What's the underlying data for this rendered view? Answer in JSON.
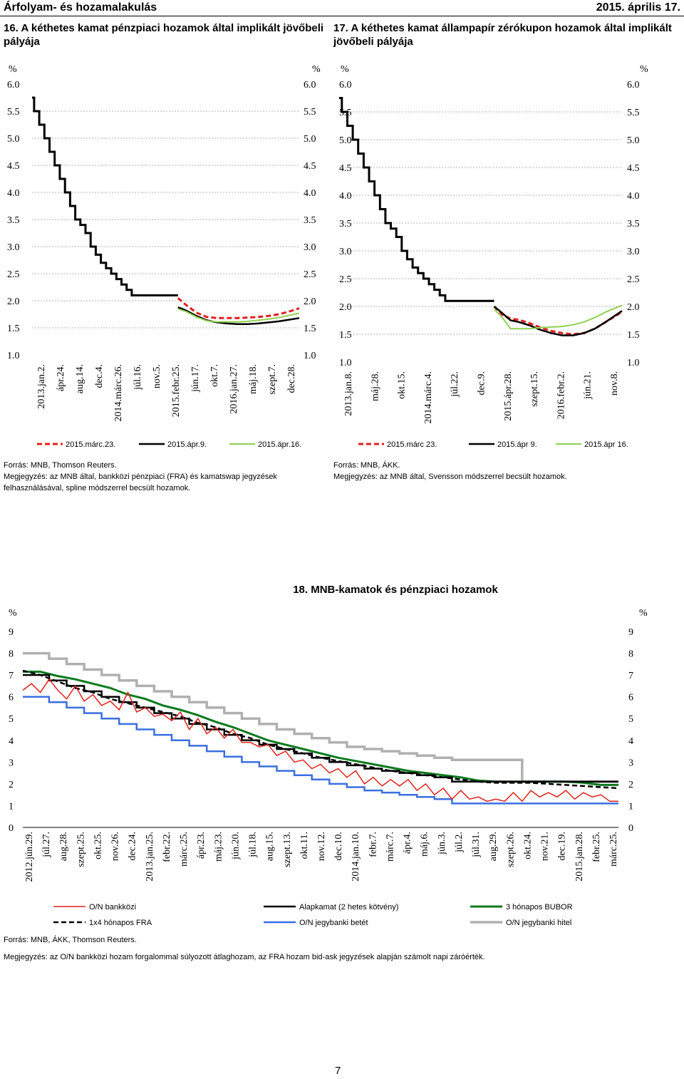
{
  "header": {
    "section": "Árfolyam- és hozamalakulás",
    "date": "2015. április 17."
  },
  "page_number": "7",
  "colors": {
    "red": "#e0211b",
    "black": "#000000",
    "green_light": "#92d050",
    "green_dark": "#0b7a1e",
    "blue": "#3a6fe0",
    "gray": "#b0b0b0"
  },
  "charts": {
    "c16": {
      "title": "16. A kéthetes kamat pénzpiaci hozamok által implikált jövőbeli pályája",
      "source": "Forrás: MNB, Thomson Reuters.",
      "note": "Megjegyzés: az MNB által, bankközi pénzpiaci (FRA) és kamatswap jegyzések felhasználásával, spline módszerrel becsült hozamok."
    },
    "c17": {
      "title": "17. A kéthetes kamat állampapír zérókupon hozamok által implikált jövőbeli pályája",
      "source": "Forrás: MNB, ÁKK.",
      "note": "Megjegyzés: az MNB által, Svensson módszerrel becsült hozamok."
    },
    "c18": {
      "title": "18. MNB-kamatok és pénzpiaci hozamok",
      "source": "Forrás: MNB, ÁKK, Thomson Reuters.",
      "note": "Megjegyzés: az O/N bankközi hozam forgalommal súlyozott átlaghozam, az FRA hozam bid-ask jegyzések alapján számolt napi záróérték."
    }
  },
  "chart_data": [
    {
      "id": "c16",
      "type": "line",
      "ylabel_left": "%",
      "ylabel_right": "%",
      "ylim": [
        1.0,
        6.0
      ],
      "yticks": [
        "1.0",
        "1.5",
        "2.0",
        "2.5",
        "3.0",
        "3.5",
        "4.0",
        "4.5",
        "5.0",
        "5.5",
        "6.0"
      ],
      "xticks": [
        "2013.jan.2.",
        "ápr.24.",
        "aug.14.",
        "dec.4.",
        "2014.márc.26.",
        "júl.16.",
        "nov.5.",
        "2015.febr.25.",
        "jún.17.",
        "okt.7.",
        "2016.jan.27.",
        "máj.18.",
        "szept.7.",
        "dec.28."
      ],
      "xrange": [
        0,
        13
      ],
      "history": {
        "x": [
          0,
          0.1,
          0.35,
          0.6,
          0.85,
          1.1,
          1.35,
          1.6,
          1.85,
          2.1,
          2.35,
          2.6,
          2.85,
          3.1,
          3.35,
          3.6,
          3.85,
          4.1,
          4.35,
          4.6,
          4.85,
          5.1,
          5.5,
          6.5,
          7.0,
          7.1
        ],
        "y": [
          5.75,
          5.5,
          5.25,
          5.0,
          4.75,
          4.5,
          4.25,
          4.0,
          3.75,
          3.5,
          3.4,
          3.25,
          3.0,
          2.85,
          2.7,
          2.6,
          2.5,
          2.4,
          2.3,
          2.2,
          2.1,
          2.1,
          2.1,
          2.1,
          2.1,
          2.1
        ]
      },
      "series": [
        {
          "name": "2015.márc.23.",
          "style": "red-dashed",
          "x": [
            7.1,
            7.5,
            8.0,
            8.5,
            9.0,
            9.5,
            10.0,
            10.5,
            11.0,
            11.5,
            12.0,
            12.5,
            13.0
          ],
          "y": [
            2.05,
            1.92,
            1.78,
            1.7,
            1.68,
            1.68,
            1.68,
            1.69,
            1.7,
            1.72,
            1.75,
            1.8,
            1.86
          ]
        },
        {
          "name": "2015.ápr.9.",
          "style": "black",
          "x": [
            7.1,
            7.5,
            8.0,
            8.5,
            9.0,
            9.5,
            10.0,
            10.5,
            11.0,
            11.5,
            12.0,
            12.5,
            13.0
          ],
          "y": [
            1.88,
            1.82,
            1.72,
            1.64,
            1.6,
            1.58,
            1.57,
            1.57,
            1.58,
            1.6,
            1.62,
            1.65,
            1.68
          ]
        },
        {
          "name": "2015.ápr.16.",
          "style": "green",
          "x": [
            7.1,
            7.5,
            8.0,
            8.5,
            9.0,
            9.5,
            10.0,
            10.5,
            11.0,
            11.5,
            12.0,
            12.5,
            13.0
          ],
          "y": [
            1.85,
            1.8,
            1.7,
            1.63,
            1.61,
            1.61,
            1.61,
            1.62,
            1.64,
            1.66,
            1.69,
            1.73,
            1.77
          ]
        }
      ]
    },
    {
      "id": "c17",
      "type": "line",
      "ylabel_left": "%",
      "ylabel_right": "%",
      "ylim": [
        1.0,
        6.0
      ],
      "yticks": [
        "1.0",
        "1.5",
        "2.0",
        "2.5",
        "3.0",
        "3.5",
        "4.0",
        "4.5",
        "5.0",
        "5.5",
        "6.0"
      ],
      "xticks": [
        "2013.jan.8.",
        "máj.28.",
        "okt.15.",
        "2014.márc.4.",
        "júl.22.",
        "dec.9.",
        "2015.ápr.28.",
        "szept.15.",
        "2016.febr.2.",
        "jún.21.",
        "nov.8."
      ],
      "xrange": [
        0,
        10.4
      ],
      "history": {
        "x": [
          0,
          0.1,
          0.3,
          0.5,
          0.7,
          0.9,
          1.1,
          1.3,
          1.5,
          1.7,
          1.9,
          2.1,
          2.3,
          2.5,
          2.7,
          2.9,
          3.1,
          3.3,
          3.5,
          3.7,
          3.9,
          4.1,
          4.3,
          5.0,
          5.6,
          5.7
        ],
        "y": [
          5.75,
          5.5,
          5.25,
          5.0,
          4.75,
          4.5,
          4.25,
          4.0,
          3.75,
          3.5,
          3.4,
          3.25,
          3.0,
          2.85,
          2.7,
          2.6,
          2.5,
          2.4,
          2.3,
          2.2,
          2.1,
          2.1,
          2.1,
          2.1,
          2.1,
          2.1
        ]
      },
      "series": [
        {
          "name": "2015.márc 23.",
          "style": "red-dashed",
          "x": [
            5.7,
            6.0,
            6.3,
            6.6,
            7.0,
            7.4,
            7.8,
            8.2,
            8.6,
            9.0,
            9.4,
            9.8,
            10.4
          ],
          "y": [
            2.0,
            1.85,
            1.78,
            1.76,
            1.7,
            1.62,
            1.56,
            1.52,
            1.5,
            1.52,
            1.6,
            1.72,
            1.9
          ]
        },
        {
          "name": "2015.ápr 9.",
          "style": "black",
          "x": [
            5.7,
            6.0,
            6.3,
            6.6,
            7.0,
            7.4,
            7.8,
            8.2,
            8.6,
            9.0,
            9.4,
            9.8,
            10.4
          ],
          "y": [
            2.0,
            1.88,
            1.75,
            1.72,
            1.66,
            1.58,
            1.52,
            1.48,
            1.48,
            1.52,
            1.6,
            1.72,
            1.92
          ]
        },
        {
          "name": "2015.ápr 16.",
          "style": "green",
          "x": [
            5.7,
            6.0,
            6.3,
            6.6,
            7.0,
            7.4,
            7.8,
            8.2,
            8.6,
            9.0,
            9.4,
            9.8,
            10.4
          ],
          "y": [
            1.95,
            1.8,
            1.6,
            1.6,
            1.6,
            1.62,
            1.63,
            1.64,
            1.67,
            1.72,
            1.8,
            1.9,
            2.02
          ]
        }
      ]
    },
    {
      "id": "c18",
      "type": "line",
      "ylabel_left": "%",
      "ylabel_right": "%",
      "ylim": [
        0,
        9
      ],
      "yticks": [
        "0",
        "1",
        "2",
        "3",
        "4",
        "5",
        "6",
        "7",
        "8",
        "9"
      ],
      "xticks": [
        "2012.jún.29.",
        "júl.27.",
        "aug.28.",
        "szept.25.",
        "okt.25.",
        "nov.26.",
        "dec.24.",
        "2013.jan.25.",
        "febr.22.",
        "márc.25.",
        "ápr.23.",
        "máj.23.",
        "jún.20.",
        "júl.18.",
        "aug.15.",
        "szept.13.",
        "okt.11.",
        "nov.12.",
        "dec.10.",
        "2014.jan.10.",
        "febr.7.",
        "márc.7.",
        "ápr.4.",
        "máj.6.",
        "jún.3.",
        "júl.2.",
        "júl.31.",
        "aug.29.",
        "szept.26.",
        "okt.24.",
        "nov.21.",
        "dec.19.",
        "2015.jan.28.",
        "febr.25.",
        "márc.25."
      ],
      "xrange": [
        0,
        34
      ],
      "legend": [
        "O/N bankközi",
        "Alapkamat (2 hetes kötvény)",
        "3 hónapos BUBOR",
        "1x4 hónapos FRA",
        "O/N jegybanki betét",
        "O/N jegybanki hitel"
      ],
      "series": [
        {
          "name": "O/N jegybanki hitel",
          "style": "gray",
          "step": true,
          "x": [
            0,
            1.5,
            2.5,
            3.5,
            4.5,
            5.5,
            6.5,
            7.5,
            8.5,
            9.5,
            10.5,
            11.5,
            12.5,
            13.5,
            14.5,
            15.5,
            16.5,
            17.5,
            18.5,
            19.5,
            20.5,
            21.5,
            22.5,
            23.5,
            24.5,
            26.5,
            28.5,
            34
          ],
          "y": [
            8.0,
            7.75,
            7.5,
            7.25,
            7.0,
            6.75,
            6.5,
            6.25,
            6.0,
            5.75,
            5.5,
            5.25,
            5.0,
            4.75,
            4.5,
            4.3,
            4.1,
            3.9,
            3.7,
            3.6,
            3.5,
            3.4,
            3.3,
            3.2,
            3.1,
            3.1,
            2.1,
            2.1
          ]
        },
        {
          "name": "3 hónapos BUBOR",
          "style": "darkgreen",
          "x": [
            0,
            1,
            2,
            3,
            4,
            5,
            6,
            7,
            8,
            9,
            10,
            11,
            12,
            13,
            14,
            15,
            16,
            17,
            18,
            19,
            20,
            21,
            22,
            23,
            24,
            25,
            26,
            27,
            28,
            29,
            30,
            31,
            32,
            33,
            34
          ],
          "y": [
            7.15,
            7.15,
            6.95,
            6.8,
            6.6,
            6.4,
            6.1,
            5.9,
            5.6,
            5.4,
            5.15,
            4.85,
            4.6,
            4.3,
            4.0,
            3.8,
            3.6,
            3.4,
            3.2,
            3.05,
            2.9,
            2.75,
            2.6,
            2.5,
            2.4,
            2.3,
            2.15,
            2.1,
            2.1,
            2.1,
            2.1,
            2.1,
            2.05,
            1.95,
            1.95
          ]
        },
        {
          "name": "Alapkamat (2 hetes kötvény)",
          "style": "black",
          "step": true,
          "x": [
            0,
            1.5,
            2.5,
            3.5,
            4.5,
            5.5,
            6.5,
            7.5,
            8.5,
            9.5,
            10.5,
            11.5,
            12.5,
            13.5,
            14.5,
            15.5,
            16.5,
            17.5,
            18.5,
            19.5,
            20.5,
            21.5,
            22.5,
            23.5,
            24.5,
            34
          ],
          "y": [
            7.0,
            6.75,
            6.5,
            6.25,
            6.0,
            5.75,
            5.5,
            5.25,
            5.0,
            4.75,
            4.5,
            4.25,
            4.0,
            3.8,
            3.6,
            3.4,
            3.2,
            3.0,
            2.85,
            2.7,
            2.6,
            2.5,
            2.4,
            2.3,
            2.1,
            2.1
          ]
        },
        {
          "name": "1x4 hónapos FRA",
          "style": "black-dashed",
          "x": [
            0,
            1,
            2,
            3,
            4,
            5,
            6,
            7,
            8,
            9,
            10,
            11,
            12,
            13,
            14,
            15,
            16,
            17,
            18,
            19,
            20,
            21,
            22,
            23,
            24,
            25,
            26,
            27,
            28,
            29,
            30,
            31,
            32,
            33,
            34
          ],
          "y": [
            7.2,
            7.0,
            6.7,
            6.4,
            6.2,
            5.9,
            5.7,
            5.5,
            5.3,
            5.1,
            4.8,
            4.6,
            4.3,
            4.1,
            3.8,
            3.6,
            3.4,
            3.2,
            3.05,
            2.9,
            2.75,
            2.6,
            2.5,
            2.4,
            2.3,
            2.2,
            2.1,
            2.05,
            2.05,
            2.05,
            2.0,
            1.95,
            1.9,
            1.85,
            1.8
          ]
        },
        {
          "name": "O/N jegybanki betét",
          "style": "blue",
          "step": true,
          "x": [
            0,
            1.5,
            2.5,
            3.5,
            4.5,
            5.5,
            6.5,
            7.5,
            8.5,
            9.5,
            10.5,
            11.5,
            12.5,
            13.5,
            14.5,
            15.5,
            16.5,
            17.5,
            18.5,
            19.5,
            20.5,
            21.5,
            22.5,
            23.5,
            24.5,
            26.5,
            34
          ],
          "y": [
            6.0,
            5.75,
            5.5,
            5.25,
            5.0,
            4.75,
            4.5,
            4.25,
            4.0,
            3.75,
            3.5,
            3.25,
            3.0,
            2.8,
            2.6,
            2.4,
            2.2,
            2.0,
            1.85,
            1.7,
            1.6,
            1.5,
            1.4,
            1.3,
            1.1,
            1.1,
            1.1
          ]
        },
        {
          "name": "O/N bankközi",
          "style": "red",
          "x": [
            0,
            0.5,
            1,
            1.5,
            2,
            2.5,
            3,
            3.5,
            4,
            4.5,
            5,
            5.5,
            6,
            6.5,
            7,
            7.5,
            8,
            8.5,
            9,
            9.5,
            10,
            10.5,
            11,
            11.5,
            12,
            12.5,
            13,
            13.5,
            14,
            14.5,
            15,
            15.5,
            16,
            16.5,
            17,
            17.5,
            18,
            18.5,
            19,
            19.5,
            20,
            20.5,
            21,
            21.5,
            22,
            22.5,
            23,
            23.5,
            24,
            24.5,
            25,
            25.5,
            26,
            26.5,
            27,
            27.5,
            28,
            28.5,
            29,
            29.5,
            30,
            30.5,
            31,
            31.5,
            32,
            32.5,
            33,
            33.5,
            34
          ],
          "y": [
            6.3,
            6.6,
            6.2,
            6.8,
            6.3,
            5.9,
            6.5,
            5.8,
            6.1,
            5.6,
            5.8,
            5.4,
            6.2,
            5.3,
            5.5,
            5.1,
            5.2,
            4.9,
            5.3,
            4.5,
            5.0,
            4.3,
            4.6,
            4.1,
            4.5,
            3.9,
            3.9,
            3.7,
            3.8,
            3.3,
            3.5,
            3.0,
            3.1,
            2.7,
            2.9,
            2.5,
            2.7,
            2.3,
            2.6,
            2.0,
            2.3,
            1.9,
            2.2,
            1.9,
            2.2,
            1.7,
            2.0,
            1.5,
            1.8,
            1.3,
            1.7,
            1.3,
            1.4,
            1.2,
            1.3,
            1.2,
            1.6,
            1.2,
            1.7,
            1.4,
            1.6,
            1.4,
            1.7,
            1.3,
            1.6,
            1.4,
            1.5,
            1.2,
            1.2
          ]
        }
      ]
    }
  ]
}
